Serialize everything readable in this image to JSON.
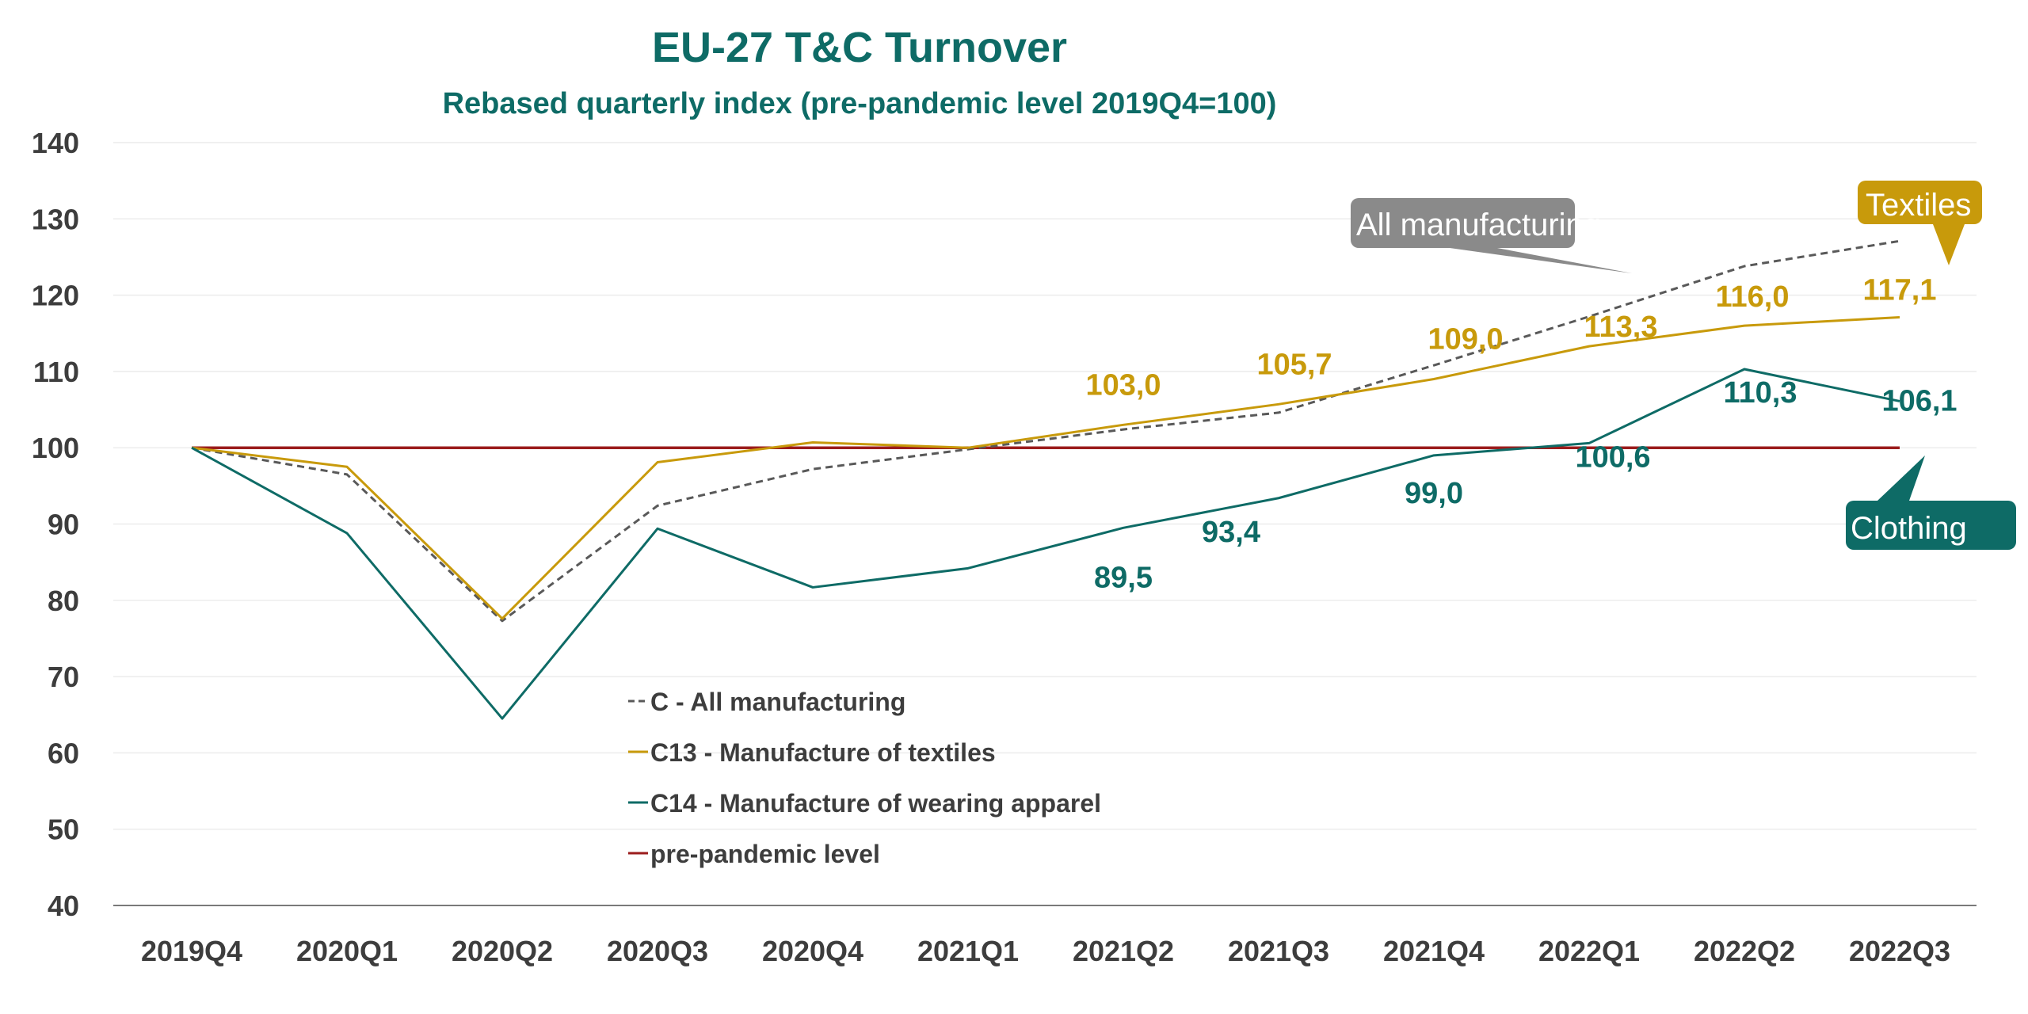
{
  "chart_data": {
    "type": "line",
    "title": "EU-27 T&C Turnover",
    "subtitle": "Rebased quarterly index (pre-pandemic level 2019Q4=100)",
    "categories": [
      "2019Q4",
      "2020Q1",
      "2020Q2",
      "2020Q3",
      "2020Q4",
      "2021Q1",
      "2021Q2",
      "2021Q3",
      "2021Q4",
      "2022Q1",
      "2022Q2",
      "2022Q3"
    ],
    "ylim": [
      40,
      140
    ],
    "yticks": [
      "40",
      "50",
      "60",
      "70",
      "80",
      "90",
      "100",
      "110",
      "120",
      "130",
      "140"
    ],
    "grid": true,
    "legend_position": "center-left",
    "series": [
      {
        "key": "manufacturing",
        "name": "C - All manufacturing",
        "color": "#595959",
        "dash": "dashed",
        "values": [
          100,
          96.5,
          77.3,
          92.4,
          97.2,
          99.8,
          102.4,
          104.6,
          110.8,
          117.2,
          123.8,
          127.1
        ]
      },
      {
        "key": "textiles",
        "name": "C13 - Manufacture of textiles",
        "color": "#c89a0b",
        "dash": "solid",
        "values": [
          100,
          97.5,
          77.6,
          98.1,
          100.7,
          100.0,
          103.0,
          105.7,
          109.0,
          113.3,
          116.0,
          117.1
        ]
      },
      {
        "key": "apparel",
        "name": "C14 - Manufacture of wearing apparel",
        "color": "#0e6b66",
        "dash": "solid",
        "values": [
          100,
          88.8,
          64.5,
          89.4,
          81.7,
          84.2,
          89.5,
          93.4,
          99.0,
          100.6,
          110.3,
          106.1
        ]
      },
      {
        "key": "baseline",
        "name": "pre-pandemic level",
        "color": "#9b1c1c",
        "dash": "solid",
        "values": [
          100,
          100,
          100,
          100,
          100,
          100,
          100,
          100,
          100,
          100,
          100,
          100
        ]
      }
    ],
    "data_labels": {
      "textiles": [
        {
          "index": 6,
          "text": "103,0"
        },
        {
          "index": 7,
          "text": "105,7"
        },
        {
          "index": 8,
          "text": "109,0"
        },
        {
          "index": 9,
          "text": "113,3"
        },
        {
          "index": 10,
          "text": "116,0"
        },
        {
          "index": 11,
          "text": "117,1"
        }
      ],
      "apparel": [
        {
          "index": 6,
          "text": "89,5"
        },
        {
          "index": 7,
          "text": "93,4"
        },
        {
          "index": 8,
          "text": "99,0"
        },
        {
          "index": 9,
          "text": "100,6"
        },
        {
          "index": 10,
          "text": "110,3"
        },
        {
          "index": 11,
          "text": "106,1"
        }
      ]
    },
    "annotations": [
      {
        "key": "manufacturing",
        "text": "All manufacturing",
        "color": "#8a8a8a"
      },
      {
        "key": "textiles",
        "text": "Textiles",
        "color": "#c89a0b"
      },
      {
        "key": "apparel",
        "text": "Clothing",
        "color": "#0e6b66"
      }
    ]
  }
}
